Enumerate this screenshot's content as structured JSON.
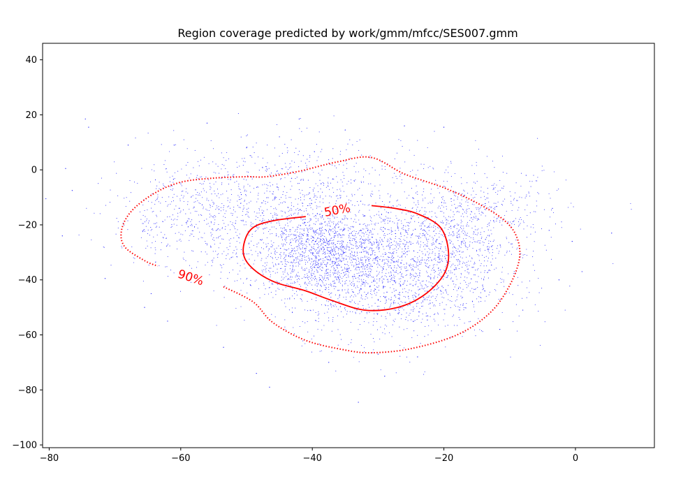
{
  "chart_data": {
    "type": "scatter",
    "title": "Region coverage predicted by work/gmm/mfcc/SES007.gmm",
    "xlabel": "",
    "ylabel": "",
    "xlim": [
      -81,
      12
    ],
    "ylim": [
      -101,
      46
    ],
    "xticks": [
      -80,
      -60,
      -40,
      -20,
      0
    ],
    "yticks": [
      -100,
      -80,
      -60,
      -40,
      -20,
      0,
      20,
      40
    ],
    "grid": false,
    "legend": "none",
    "point_color": "#0000ff",
    "contour_color": "#ff0000",
    "scatter": {
      "description_of_distribution": "dense cloud of small points, heaviest near (-38,-30)",
      "sample_points": [
        [
          -74.5,
          18.5
        ],
        [
          -74,
          15.5
        ],
        [
          -77.5,
          0.5
        ],
        [
          -80.5,
          -10.5
        ],
        [
          -76.5,
          -7.5
        ],
        [
          -78,
          -24
        ],
        [
          -71.5,
          -39.5
        ],
        [
          -64.5,
          -45
        ],
        [
          -65.5,
          -50
        ],
        [
          -62,
          -55
        ],
        [
          -56,
          17
        ],
        [
          -53.5,
          -64.5
        ],
        [
          -48.5,
          -74
        ],
        [
          -46.5,
          -79
        ],
        [
          -37.5,
          -70
        ],
        [
          -33,
          -84.5
        ],
        [
          -29,
          -75
        ],
        [
          -42,
          18.5
        ],
        [
          -35,
          14.5
        ],
        [
          -26,
          16
        ],
        [
          -20,
          15.5
        ],
        [
          -7.5,
          -2
        ],
        [
          -3.5,
          -14
        ],
        [
          -4,
          -22
        ],
        [
          5.5,
          -23
        ],
        [
          -0.5,
          -26
        ],
        [
          1,
          -37
        ],
        [
          -2.5,
          -40
        ],
        [
          -8,
          -51
        ],
        [
          -11.5,
          -58
        ],
        [
          -30,
          -67
        ],
        [
          -24,
          -68
        ],
        [
          -50,
          8
        ],
        [
          -45,
          12
        ],
        [
          -61,
          9
        ],
        [
          -68,
          9
        ]
      ]
    },
    "contours": [
      {
        "label": "50%",
        "style": "solid",
        "points": [
          [
            -41,
            -17
          ],
          [
            -46,
            -18.5
          ],
          [
            -49,
            -21
          ],
          [
            -50.3,
            -26
          ],
          [
            -50.3,
            -32
          ],
          [
            -48.5,
            -37
          ],
          [
            -45.5,
            -41
          ],
          [
            -41,
            -44
          ],
          [
            -37,
            -47.5
          ],
          [
            -32,
            -51
          ],
          [
            -27,
            -50
          ],
          [
            -23,
            -45.5
          ],
          [
            -20,
            -38
          ],
          [
            -19.3,
            -30
          ],
          [
            -20.5,
            -21
          ],
          [
            -24,
            -16
          ],
          [
            -27.5,
            -14
          ],
          [
            -31,
            -13
          ]
        ]
      },
      {
        "label": "90%",
        "style": "dotted",
        "points": [
          [
            -53.5,
            -42.5
          ],
          [
            -49,
            -48
          ],
          [
            -46,
            -55.5
          ],
          [
            -41,
            -62
          ],
          [
            -35,
            -65.5
          ],
          [
            -31,
            -66.5
          ],
          [
            -25,
            -65
          ],
          [
            -18,
            -60
          ],
          [
            -13,
            -52
          ],
          [
            -10,
            -42
          ],
          [
            -8.5,
            -32
          ],
          [
            -9,
            -24
          ],
          [
            -11,
            -18
          ],
          [
            -15,
            -12
          ],
          [
            -20,
            -6.5
          ],
          [
            -26,
            -1.5
          ],
          [
            -31,
            4.5
          ],
          [
            -36,
            3
          ],
          [
            -42,
            -0.5
          ],
          [
            -47,
            -2.5
          ],
          [
            -50,
            -2.5
          ],
          [
            -55,
            -3
          ],
          [
            -60,
            -4.5
          ],
          [
            -64,
            -8.5
          ],
          [
            -67.5,
            -15
          ],
          [
            -69,
            -22
          ],
          [
            -68.5,
            -28
          ],
          [
            -65.5,
            -33
          ],
          [
            -63.5,
            -35
          ]
        ]
      }
    ],
    "contour_labels": [
      {
        "text": "50%",
        "x": -36.2,
        "y": -14.8,
        "rotation": -11
      },
      {
        "text": "90%",
        "x": -58.5,
        "y": -39.3,
        "rotation": 18
      }
    ]
  }
}
